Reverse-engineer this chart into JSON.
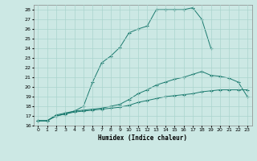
{
  "title": "",
  "xlabel": "Humidex (Indice chaleur)",
  "xlim": [
    -0.5,
    23.5
  ],
  "ylim": [
    16,
    28.5
  ],
  "xticks": [
    0,
    1,
    2,
    3,
    4,
    5,
    6,
    7,
    8,
    9,
    10,
    11,
    12,
    13,
    14,
    15,
    16,
    17,
    18,
    19,
    20,
    21,
    22,
    23
  ],
  "yticks": [
    16,
    17,
    18,
    19,
    20,
    21,
    22,
    23,
    24,
    25,
    26,
    27,
    28
  ],
  "bg_color": "#cce8e4",
  "line_color": "#1a7a6e",
  "grid_color": "#aad4ce",
  "line1_x": [
    0,
    1,
    2,
    3,
    4,
    5,
    6,
    7,
    8,
    9,
    10,
    11,
    12,
    13,
    14,
    15,
    16,
    17,
    18,
    19
  ],
  "line1_y": [
    16.5,
    16.5,
    17.0,
    17.2,
    17.5,
    18.0,
    20.5,
    22.5,
    23.2,
    24.1,
    25.6,
    26.0,
    26.3,
    28.0,
    28.0,
    28.0,
    28.0,
    28.2,
    27.0,
    24.0
  ],
  "line2_x": [
    0,
    1,
    2,
    3,
    4,
    5,
    6,
    7,
    8,
    9,
    10,
    11,
    12,
    13,
    14,
    15,
    16,
    17,
    18,
    19,
    20,
    21,
    22,
    23
  ],
  "line2_y": [
    16.5,
    16.5,
    17.1,
    17.3,
    17.5,
    17.6,
    17.7,
    17.8,
    18.0,
    18.2,
    18.7,
    19.3,
    19.7,
    20.2,
    20.5,
    20.8,
    21.0,
    21.3,
    21.6,
    21.2,
    21.1,
    20.9,
    20.5,
    19.0
  ],
  "line3_x": [
    0,
    1,
    2,
    3,
    4,
    5,
    6,
    7,
    8,
    9,
    10,
    11,
    12,
    13,
    14,
    15,
    16,
    17,
    18,
    19,
    20,
    21,
    22,
    23
  ],
  "line3_y": [
    16.5,
    16.5,
    17.0,
    17.2,
    17.4,
    17.5,
    17.6,
    17.7,
    17.8,
    17.9,
    18.1,
    18.4,
    18.6,
    18.8,
    19.0,
    19.1,
    19.2,
    19.3,
    19.5,
    19.6,
    19.7,
    19.7,
    19.7,
    19.7
  ]
}
